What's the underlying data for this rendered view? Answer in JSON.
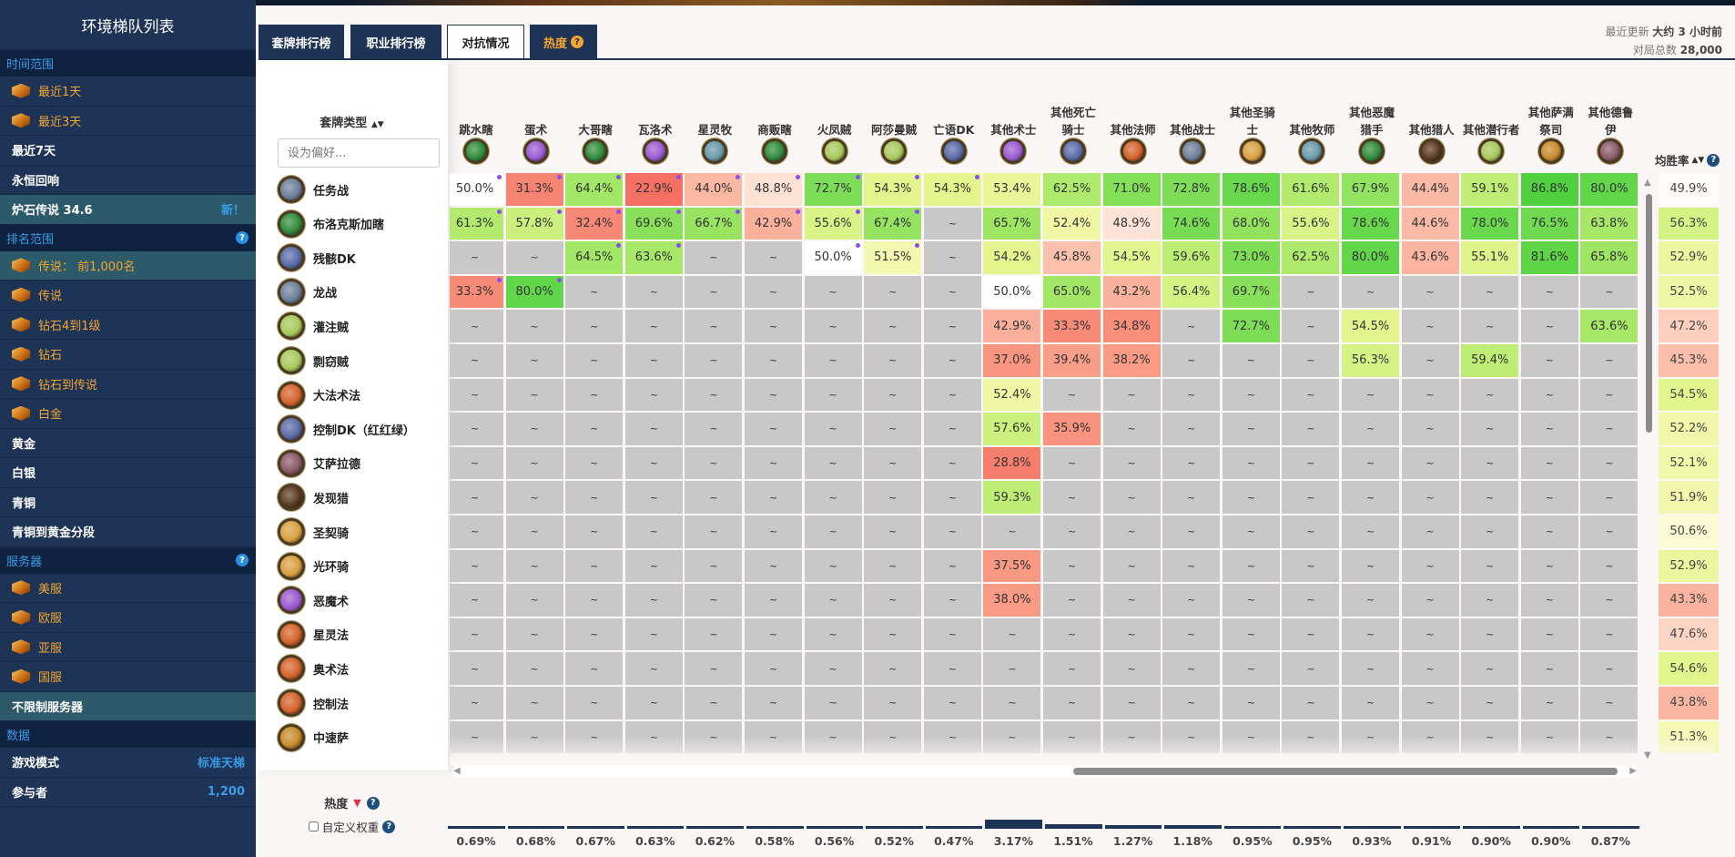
{
  "sidebar": {
    "title": "环境梯队列表",
    "sections": [
      {
        "header": "时间范围",
        "help": false,
        "items": [
          {
            "label": "最近1天",
            "gold": true
          },
          {
            "label": "最近3天",
            "gold": true
          },
          {
            "label": "最近7天"
          },
          {
            "label": "永恒回响"
          },
          {
            "label": "炉石传说 34.6",
            "active": true,
            "right": "新！"
          }
        ]
      },
      {
        "header": "排名范围",
        "help": true,
        "items": [
          {
            "label": "传说： 前1,000名",
            "gold": true,
            "active": true
          },
          {
            "label": "传说",
            "gold": true
          },
          {
            "label": "钻石4到1级",
            "gold": true
          },
          {
            "label": "钻石",
            "gold": true
          },
          {
            "label": "钻石到传说",
            "gold": true
          },
          {
            "label": "白金",
            "gold": true
          },
          {
            "label": "黄金"
          },
          {
            "label": "白银"
          },
          {
            "label": "青铜"
          },
          {
            "label": "青铜到黄金分段"
          }
        ]
      },
      {
        "header": "服务器",
        "help": true,
        "items": [
          {
            "label": "美服",
            "gold": true
          },
          {
            "label": "欧服",
            "gold": true
          },
          {
            "label": "亚服",
            "gold": true
          },
          {
            "label": "国服",
            "gold": true
          },
          {
            "label": "不限制服务器",
            "active": true
          }
        ]
      },
      {
        "header": "数据",
        "help": false,
        "items": [
          {
            "label": "游戏模式",
            "right": "标准天梯"
          },
          {
            "label": "参与者",
            "right": "1,200"
          }
        ]
      }
    ]
  },
  "tabs": [
    {
      "label": "套牌排行榜"
    },
    {
      "label": "职业排行榜"
    },
    {
      "label": "对抗情况",
      "active": true
    },
    {
      "label": "热度",
      "hot": true
    }
  ],
  "meta": {
    "updated_label": "最近更新",
    "updated_value": "大约 3 小时前",
    "games_label": "对局总数",
    "games_value": "28,000"
  },
  "left": {
    "deck_type_label": "套牌类型",
    "sort_icon": "▲▼",
    "pref_placeholder": "设为偏好..."
  },
  "winrate_header": "均胜率",
  "popularity": {
    "label": "热度",
    "custom_weight_label": "自定义权重"
  },
  "class_colors": {
    "warrior": "#6c7f98",
    "dh": "#2f8a3a",
    "dk": "#5a6aa8",
    "warlock": "#9a5ad0",
    "priest": "#6a9aa8",
    "rogue": "#a8c85a",
    "mage": "#d4622a",
    "paladin": "#d8a040",
    "hunter": "#5a3a22",
    "shaman": "#c88a2a",
    "druid": "#8a5a6a"
  },
  "columns": [
    {
      "name": "跳水瞎",
      "cls": "dh",
      "popularity": 0.69
    },
    {
      "name": "蛋术",
      "cls": "warlock",
      "popularity": 0.68
    },
    {
      "name": "大哥瞎",
      "cls": "dh",
      "popularity": 0.67
    },
    {
      "name": "瓦洛术",
      "cls": "warlock",
      "popularity": 0.63
    },
    {
      "name": "星灵牧",
      "cls": "priest",
      "popularity": 0.62
    },
    {
      "name": "商贩瞎",
      "cls": "dh",
      "popularity": 0.58
    },
    {
      "name": "火凤贼",
      "cls": "rogue",
      "popularity": 0.56
    },
    {
      "name": "阿莎曼贼",
      "cls": "rogue",
      "popularity": 0.52
    },
    {
      "name": "亡语DK",
      "cls": "dk",
      "popularity": 0.47
    },
    {
      "name": "其他术士",
      "cls": "warlock",
      "popularity": 3.17
    },
    {
      "name": "其他死亡\n骑士",
      "cls": "dk",
      "popularity": 1.51
    },
    {
      "name": "其他法师",
      "cls": "mage",
      "popularity": 1.27
    },
    {
      "name": "其他战士",
      "cls": "warrior",
      "popularity": 1.18
    },
    {
      "name": "其他圣骑\n士",
      "cls": "paladin",
      "popularity": 0.95
    },
    {
      "name": "其他牧师",
      "cls": "priest",
      "popularity": 0.95
    },
    {
      "name": "其他恶魔\n猎手",
      "cls": "dh",
      "popularity": 0.93
    },
    {
      "name": "其他猎人",
      "cls": "hunter",
      "popularity": 0.91
    },
    {
      "name": "其他潜行者",
      "cls": "rogue",
      "popularity": 0.9
    },
    {
      "name": "其他萨满\n祭司",
      "cls": "shaman",
      "popularity": 0.9
    },
    {
      "name": "其他德鲁\n伊",
      "cls": "druid",
      "popularity": 0.87
    }
  ],
  "empty_symbol": "~",
  "rows": [
    {
      "name": "任务战",
      "cls": "warrior",
      "winrate": 49.9,
      "values": [
        50.0,
        31.3,
        64.4,
        22.9,
        44.0,
        48.8,
        72.7,
        54.3,
        54.3,
        53.4,
        62.5,
        71.0,
        72.8,
        78.6,
        61.6,
        67.9,
        44.4,
        59.1,
        86.8,
        80.0
      ]
    },
    {
      "name": "布洛克斯加瞎",
      "cls": "dh",
      "winrate": 56.3,
      "values": [
        61.3,
        57.8,
        32.4,
        69.6,
        66.7,
        42.9,
        55.6,
        67.4,
        null,
        65.7,
        52.4,
        48.9,
        74.6,
        68.0,
        55.6,
        78.6,
        44.6,
        78.0,
        76.5,
        63.8
      ]
    },
    {
      "name": "残骸DK",
      "cls": "dk",
      "winrate": 52.9,
      "values": [
        null,
        null,
        64.5,
        63.6,
        null,
        null,
        50.0,
        51.5,
        null,
        54.2,
        45.8,
        54.5,
        59.6,
        73.0,
        62.5,
        80.0,
        43.6,
        55.1,
        81.6,
        65.8
      ]
    },
    {
      "name": "龙战",
      "cls": "warrior",
      "winrate": 52.5,
      "values": [
        33.3,
        80.0,
        null,
        null,
        null,
        null,
        null,
        null,
        null,
        50.0,
        65.0,
        43.2,
        56.4,
        69.7,
        null,
        null,
        null,
        null,
        null,
        null
      ]
    },
    {
      "name": "灌注贼",
      "cls": "rogue",
      "winrate": 47.2,
      "values": [
        null,
        null,
        null,
        null,
        null,
        null,
        null,
        null,
        null,
        42.9,
        33.3,
        34.8,
        null,
        72.7,
        null,
        54.5,
        null,
        null,
        null,
        63.6
      ]
    },
    {
      "name": "剽窃贼",
      "cls": "rogue",
      "winrate": 45.3,
      "values": [
        null,
        null,
        null,
        null,
        null,
        null,
        null,
        null,
        null,
        37.0,
        39.4,
        38.2,
        null,
        null,
        null,
        56.3,
        null,
        59.4,
        null,
        null
      ]
    },
    {
      "name": "大法术法",
      "cls": "mage",
      "winrate": 54.5,
      "values": [
        null,
        null,
        null,
        null,
        null,
        null,
        null,
        null,
        null,
        52.4,
        null,
        null,
        null,
        null,
        null,
        null,
        null,
        null,
        null,
        null
      ]
    },
    {
      "name": "控制DK（红红绿）",
      "cls": "dk",
      "winrate": 52.2,
      "values": [
        null,
        null,
        null,
        null,
        null,
        null,
        null,
        null,
        null,
        57.6,
        35.9,
        null,
        null,
        null,
        null,
        null,
        null,
        null,
        null,
        null
      ]
    },
    {
      "name": "艾萨拉德",
      "cls": "druid",
      "winrate": 52.1,
      "values": [
        null,
        null,
        null,
        null,
        null,
        null,
        null,
        null,
        null,
        28.8,
        null,
        null,
        null,
        null,
        null,
        null,
        null,
        null,
        null,
        null
      ]
    },
    {
      "name": "发现猎",
      "cls": "hunter",
      "winrate": 51.9,
      "values": [
        null,
        null,
        null,
        null,
        null,
        null,
        null,
        null,
        null,
        59.3,
        null,
        null,
        null,
        null,
        null,
        null,
        null,
        null,
        null,
        null
      ]
    },
    {
      "name": "圣契骑",
      "cls": "paladin",
      "winrate": 50.6,
      "values": [
        null,
        null,
        null,
        null,
        null,
        null,
        null,
        null,
        null,
        null,
        null,
        null,
        null,
        null,
        null,
        null,
        null,
        null,
        null,
        null
      ]
    },
    {
      "name": "光环骑",
      "cls": "paladin",
      "winrate": 52.9,
      "values": [
        null,
        null,
        null,
        null,
        null,
        null,
        null,
        null,
        null,
        37.5,
        null,
        null,
        null,
        null,
        null,
        null,
        null,
        null,
        null,
        null
      ]
    },
    {
      "name": "恶魔术",
      "cls": "warlock",
      "winrate": 43.3,
      "values": [
        null,
        null,
        null,
        null,
        null,
        null,
        null,
        null,
        null,
        38.0,
        null,
        null,
        null,
        null,
        null,
        null,
        null,
        null,
        null,
        null
      ]
    },
    {
      "name": "星灵法",
      "cls": "mage",
      "winrate": 47.6,
      "values": [
        null,
        null,
        null,
        null,
        null,
        null,
        null,
        null,
        null,
        null,
        null,
        null,
        null,
        null,
        null,
        null,
        null,
        null,
        null,
        null
      ]
    },
    {
      "name": "奥术法",
      "cls": "mage",
      "winrate": 54.6,
      "values": [
        null,
        null,
        null,
        null,
        null,
        null,
        null,
        null,
        null,
        null,
        null,
        null,
        null,
        null,
        null,
        null,
        null,
        null,
        null,
        null
      ]
    },
    {
      "name": "控制法",
      "cls": "mage",
      "winrate": 43.8,
      "values": [
        null,
        null,
        null,
        null,
        null,
        null,
        null,
        null,
        null,
        null,
        null,
        null,
        null,
        null,
        null,
        null,
        null,
        null,
        null,
        null
      ]
    },
    {
      "name": "中速萨",
      "cls": "shaman",
      "winrate": 51.3,
      "values": [
        null,
        null,
        null,
        null,
        null,
        null,
        null,
        null,
        null,
        null,
        null,
        null,
        null,
        null,
        null,
        null,
        null,
        null,
        null,
        null
      ]
    }
  ],
  "marked_columns": 9
}
